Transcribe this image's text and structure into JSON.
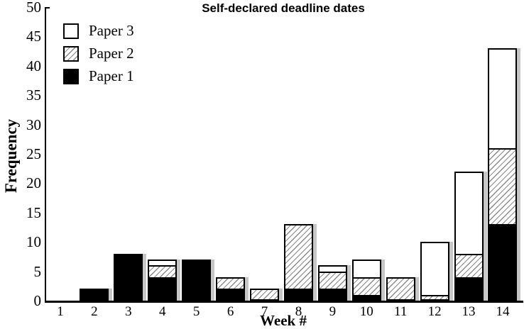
{
  "chart_data": {
    "type": "bar",
    "stacked": true,
    "title": "Self-declared deadline dates",
    "xlabel": "Week #",
    "ylabel": "Frequency",
    "categories": [
      "1",
      "2",
      "3",
      "4",
      "5",
      "6",
      "7",
      "8",
      "9",
      "10",
      "11",
      "12",
      "13",
      "14"
    ],
    "series": [
      {
        "name": "Paper 1",
        "pattern": "solid-black",
        "values": [
          0,
          2,
          8,
          4,
          7,
          2,
          0,
          2,
          2,
          1,
          0,
          0,
          4,
          13
        ]
      },
      {
        "name": "Paper 2",
        "pattern": "diagonal-hatch",
        "values": [
          0,
          0,
          0,
          2,
          0,
          2,
          2,
          11,
          3,
          3,
          4,
          1,
          4,
          13
        ]
      },
      {
        "name": "Paper 3",
        "pattern": "white",
        "values": [
          0,
          0,
          0,
          1,
          0,
          0,
          0,
          0,
          1,
          3,
          0,
          9,
          14,
          17
        ]
      }
    ],
    "totals": [
      0,
      2,
      8,
      7,
      7,
      4,
      2,
      13,
      6,
      7,
      4,
      10,
      22,
      43
    ],
    "ylim": [
      0,
      50
    ],
    "yticks": [
      "0",
      "5",
      "10",
      "15",
      "20",
      "25",
      "30",
      "35",
      "40",
      "45",
      "50"
    ],
    "grid": false,
    "legend_position": "top-left",
    "legend": [
      {
        "label": "Paper 3",
        "pattern": "white"
      },
      {
        "label": "Paper 2",
        "pattern": "diagonal-hatch"
      },
      {
        "label": "Paper 1",
        "pattern": "solid-black"
      }
    ],
    "colors": {
      "bar_fill_black": "#000000",
      "bar_border": "#000000",
      "hatch_line": "#8a8a8a",
      "bar_shadow": "#c6c6c6",
      "background": "#ffffff",
      "text": "#000000"
    }
  }
}
